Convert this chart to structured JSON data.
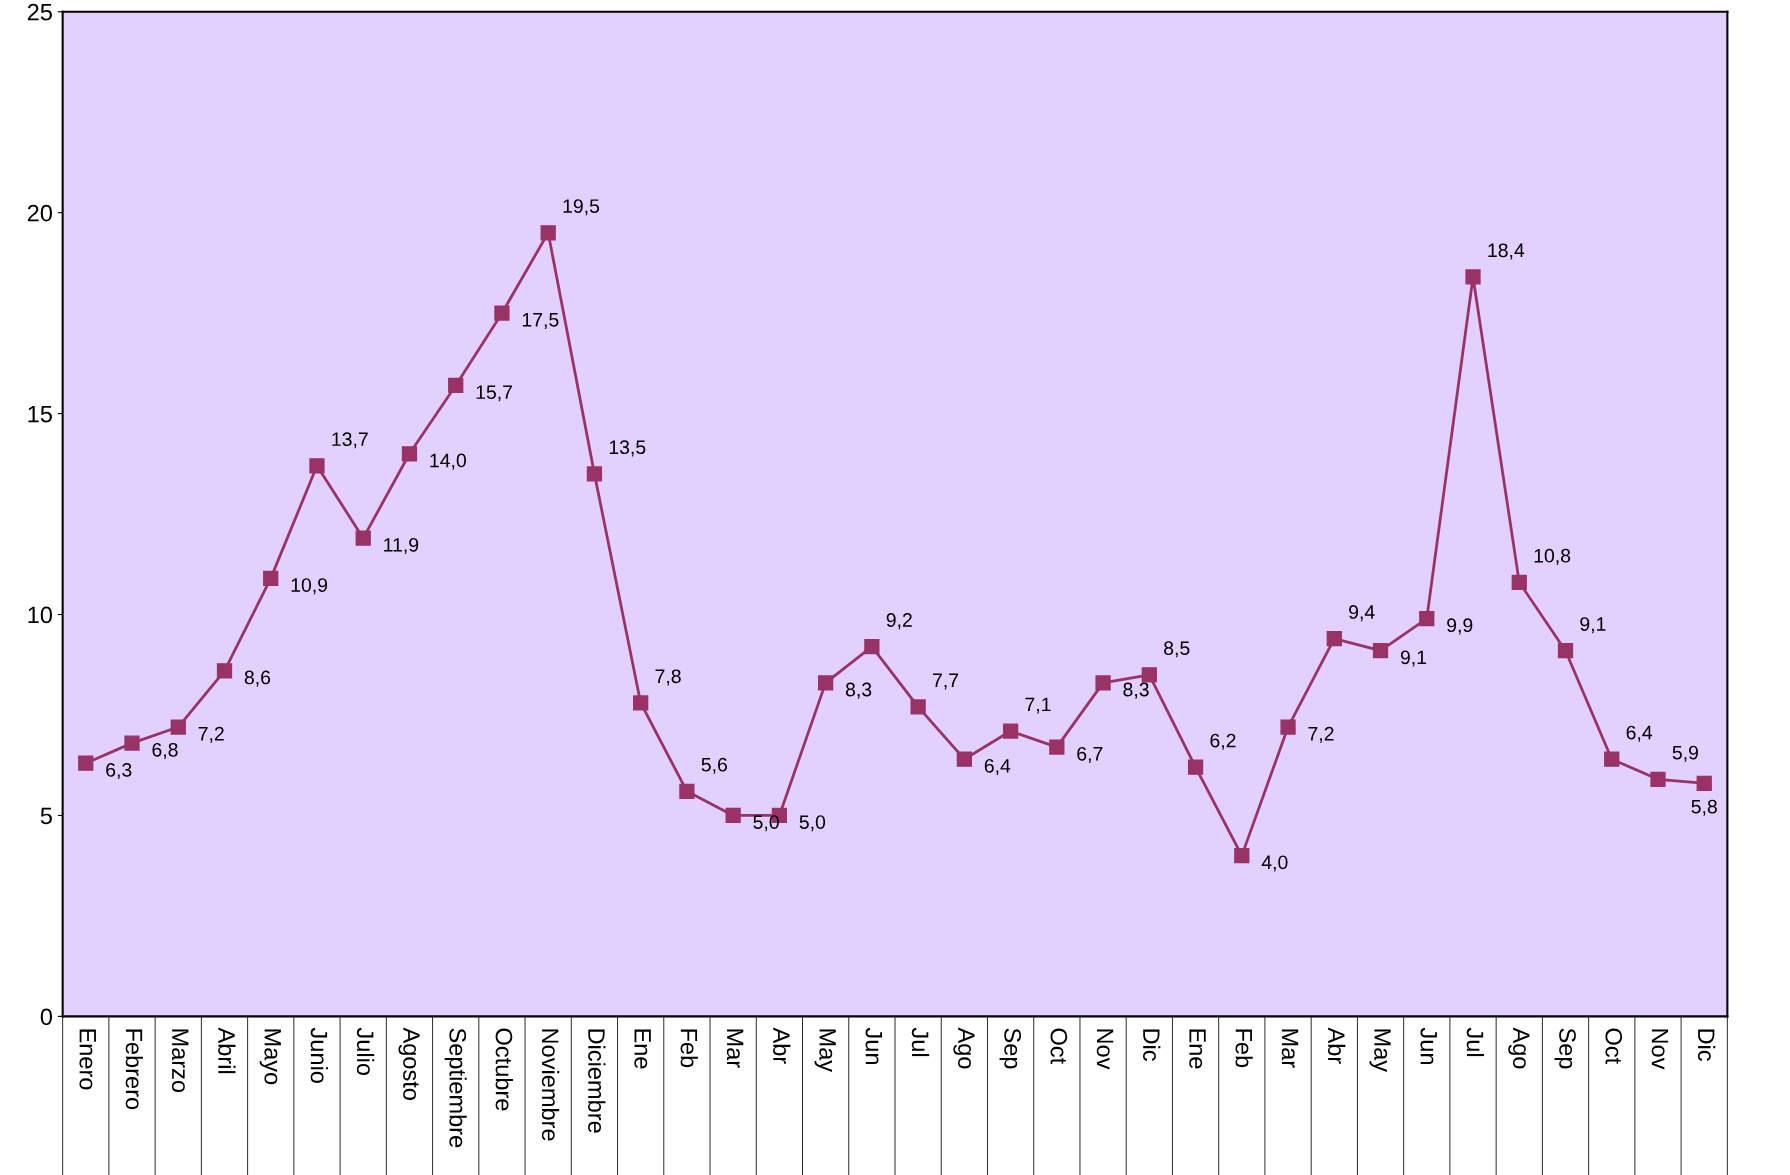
{
  "chart_data": {
    "type": "line",
    "categories": [
      "Enero",
      "Febrero",
      "Marzo",
      "Abril",
      "Mayo",
      "Junio",
      "Julio",
      "Agosto",
      "Septiembre",
      "Octubre",
      "Noviembre",
      "Diciembre",
      "Ene",
      "Feb",
      "Mar",
      "Abr",
      "May",
      "Jun",
      "Jul",
      "Ago",
      "Sep",
      "Oct",
      "Nov",
      "Dic",
      "Ene",
      "Feb",
      "Mar",
      "Abr",
      "May",
      "Jun",
      "Jul",
      "Ago",
      "Sep",
      "Oct",
      "Nov",
      "Dic"
    ],
    "series": [
      {
        "color": "#993366",
        "values": [
          6.3,
          6.8,
          7.2,
          8.6,
          10.9,
          13.7,
          11.9,
          14.0,
          15.7,
          17.5,
          19.5,
          13.5,
          7.8,
          5.6,
          5.0,
          5.0,
          8.3,
          9.2,
          7.7,
          6.4,
          7.1,
          6.7,
          8.3,
          8.5,
          6.2,
          4.0,
          7.2,
          9.4,
          9.1,
          9.9,
          18.4,
          10.8,
          9.1,
          6.4,
          5.9,
          5.8
        ],
        "value_labels": [
          "6,3",
          "6,8",
          "7,2",
          "8,6",
          "10,9",
          "13,7",
          "11,9",
          "14,0",
          "15,7",
          "17,5",
          "19,5",
          "13,5",
          "7,8",
          "5,6",
          "5,0",
          "5,0",
          "8,3",
          "9,2",
          "7,7",
          "6,4",
          "7,1",
          "6,7",
          "8,3",
          "8,5",
          "6,2",
          "4,0",
          "7,2",
          "9,4",
          "9,1",
          "9,9",
          "18,4",
          "10,8",
          "9,1",
          "6,4",
          "5,9",
          "5,8"
        ]
      }
    ],
    "ylim": [
      0,
      25
    ],
    "yticks": [
      0,
      5,
      10,
      15,
      20,
      25
    ],
    "grid": false,
    "legend": false,
    "marker": "square",
    "line_style": "solid"
  }
}
